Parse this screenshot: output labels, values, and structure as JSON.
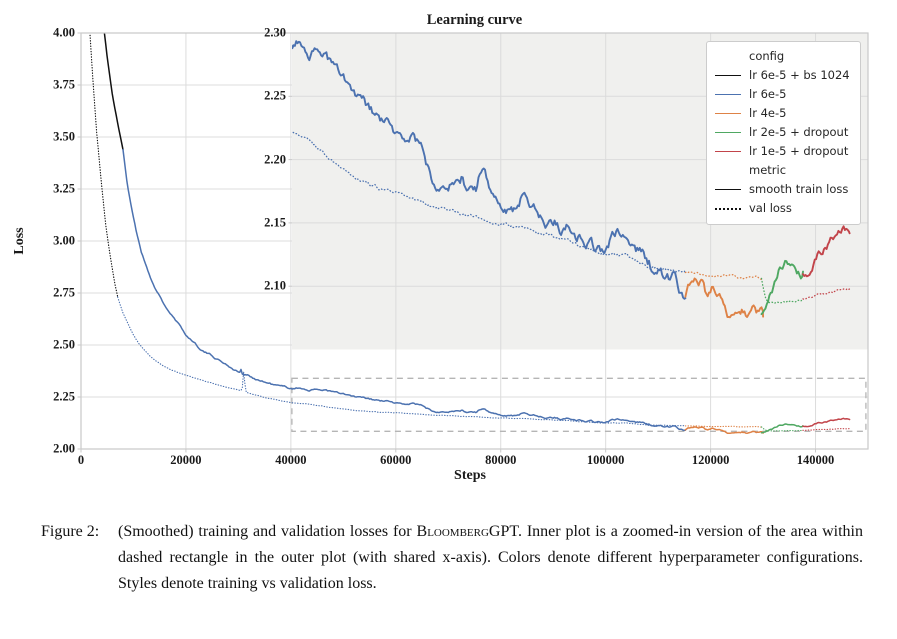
{
  "chart_data": {
    "type": "line",
    "title": "Learning curve",
    "xlabel": "Steps",
    "ylabel": "Loss",
    "grid": true,
    "colors": {
      "black": "#111111",
      "blue": "#4C72B0",
      "orange": "#DE8246",
      "green": "#4FA862",
      "red": "#C2444A",
      "grid": "#DCDCDC",
      "inset_bg": "#F0F0EE",
      "border": "#C9C9C9",
      "zoom_rect": "#B5B5B5"
    },
    "main_axes": {
      "xlim": [
        0,
        150000
      ],
      "ylim": [
        2.0,
        4.0
      ],
      "xticks": [
        "0",
        "20000",
        "40000",
        "60000",
        "80000",
        "100000",
        "120000",
        "140000"
      ],
      "yticks": [
        "2.00",
        "2.25",
        "2.50",
        "2.75",
        "3.00",
        "3.25",
        "3.50",
        "3.75",
        "4.00"
      ]
    },
    "inset_axes": {
      "xlim": [
        40200,
        150000
      ],
      "ylim": [
        2.05,
        2.3
      ],
      "yticks": [
        "2.10",
        "2.15",
        "2.20",
        "2.25",
        "2.30"
      ],
      "gridx": [
        60000,
        80000,
        100000,
        120000,
        140000
      ],
      "gridy": [
        2.1,
        2.15,
        2.2,
        2.25
      ]
    },
    "zoom_rect": {
      "x": [
        40200,
        149600
      ],
      "y": [
        2.085,
        2.34
      ]
    },
    "series": [
      {
        "id": "train_bs1024",
        "config": "lr 6e-5 + bs 1024",
        "metric": "smooth train loss",
        "color": "black",
        "style": "solid",
        "seed": 11,
        "noise": 0.001,
        "points": [
          [
            4200,
            4.06
          ],
          [
            5000,
            3.88
          ],
          [
            6000,
            3.7
          ],
          [
            7100,
            3.55
          ],
          [
            8000,
            3.44
          ]
        ]
      },
      {
        "id": "val_bs1024",
        "config": "lr 6e-5 + bs 1024",
        "metric": "val loss",
        "color": "black",
        "style": "dotted",
        "seed": 12,
        "noise": 0.001,
        "points": [
          [
            1500,
            4.08
          ],
          [
            2200,
            3.8
          ],
          [
            3000,
            3.52
          ],
          [
            3800,
            3.3
          ],
          [
            4700,
            3.08
          ],
          [
            5600,
            2.92
          ],
          [
            6400,
            2.8
          ],
          [
            7000,
            2.73
          ]
        ]
      },
      {
        "id": "train_6e5",
        "config": "lr 6e-5",
        "metric": "smooth train loss",
        "color": "blue",
        "style": "solid",
        "seed": 21,
        "noise": 0.0038,
        "points": [
          [
            8000,
            3.44
          ],
          [
            8800,
            3.28
          ],
          [
            9600,
            3.16
          ],
          [
            10500,
            3.05
          ],
          [
            11500,
            2.95
          ],
          [
            12500,
            2.875
          ],
          [
            13500,
            2.81
          ],
          [
            14500,
            2.755
          ],
          [
            15500,
            2.71
          ],
          [
            16500,
            2.67
          ],
          [
            17500,
            2.635
          ],
          [
            18500,
            2.6
          ],
          [
            19500,
            2.565
          ],
          [
            20500,
            2.535
          ],
          [
            21500,
            2.515
          ],
          [
            22500,
            2.49
          ],
          [
            23500,
            2.47
          ],
          [
            24500,
            2.455
          ],
          [
            25500,
            2.44
          ],
          [
            26500,
            2.425
          ],
          [
            27500,
            2.41
          ],
          [
            28500,
            2.395
          ],
          [
            29500,
            2.38
          ],
          [
            30300,
            2.368
          ],
          [
            30500,
            2.384
          ],
          [
            30800,
            2.36
          ],
          [
            32000,
            2.35
          ],
          [
            33500,
            2.335
          ],
          [
            35000,
            2.322
          ],
          [
            36500,
            2.31
          ],
          [
            38000,
            2.3
          ],
          [
            39500,
            2.293
          ],
          [
            41000,
            2.292
          ],
          [
            42200,
            2.293
          ],
          [
            43000,
            2.288
          ],
          [
            44500,
            2.284
          ],
          [
            46700,
            2.286
          ],
          [
            48300,
            2.272
          ],
          [
            50200,
            2.2605
          ],
          [
            51800,
            2.25
          ],
          [
            54300,
            2.2394
          ],
          [
            56200,
            2.2315
          ],
          [
            58500,
            2.2263
          ],
          [
            61000,
            2.2131
          ],
          [
            62000,
            2.2157
          ],
          [
            63500,
            2.221
          ],
          [
            65500,
            2.2026
          ],
          [
            66700,
            2.1868
          ],
          [
            68300,
            2.1855
          ],
          [
            69900,
            2.1888
          ],
          [
            71200,
            2.1828
          ],
          [
            72500,
            2.1868
          ],
          [
            73400,
            2.1776
          ],
          [
            75300,
            2.1762
          ],
          [
            76000,
            2.1868
          ],
          [
            77200,
            2.1828
          ],
          [
            78200,
            2.1697
          ],
          [
            79500,
            2.1631
          ],
          [
            80700,
            2.167
          ],
          [
            82300,
            2.1618
          ],
          [
            83900,
            2.171
          ],
          [
            84600,
            2.175
          ],
          [
            85500,
            2.171
          ],
          [
            86800,
            2.1657
          ],
          [
            87700,
            2.1578
          ],
          [
            88400,
            2.1499
          ],
          [
            90300,
            2.1525
          ],
          [
            91600,
            2.146
          ],
          [
            92800,
            2.1499
          ],
          [
            94400,
            2.1433
          ],
          [
            96000,
            2.1394
          ],
          [
            97600,
            2.1327
          ],
          [
            99200,
            2.1275
          ],
          [
            100800,
            2.1365
          ],
          [
            102700,
            2.1404
          ],
          [
            104600,
            2.1339
          ],
          [
            106500,
            2.1273
          ],
          [
            108400,
            2.1168
          ],
          [
            109300,
            2.1102
          ],
          [
            110300,
            2.1128
          ],
          [
            111200,
            2.1049
          ],
          [
            112200,
            2.1023
          ],
          [
            113100,
            2.1063
          ],
          [
            114100,
            2.0944
          ],
          [
            115200,
            2.0905
          ]
        ]
      },
      {
        "id": "val_6e5",
        "config": "lr 6e-5",
        "metric": "val loss",
        "color": "blue",
        "style": "dotted",
        "seed": 22,
        "noise": 0.0011,
        "points": [
          [
            7000,
            2.73
          ],
          [
            8000,
            2.655
          ],
          [
            9000,
            2.6
          ],
          [
            10000,
            2.55
          ],
          [
            11000,
            2.51
          ],
          [
            12000,
            2.478
          ],
          [
            13000,
            2.452
          ],
          [
            14000,
            2.43
          ],
          [
            15500,
            2.405
          ],
          [
            17000,
            2.386
          ],
          [
            18500,
            2.37
          ],
          [
            20000,
            2.356
          ],
          [
            22000,
            2.339
          ],
          [
            24000,
            2.324
          ],
          [
            26000,
            2.31
          ],
          [
            28000,
            2.296
          ],
          [
            30000,
            2.284
          ],
          [
            30700,
            2.279
          ],
          [
            31000,
            2.37
          ],
          [
            31400,
            2.272
          ],
          [
            33000,
            2.262
          ],
          [
            35000,
            2.249
          ],
          [
            37000,
            2.237
          ],
          [
            39000,
            2.227
          ],
          [
            40000,
            2.2224
          ],
          [
            43800,
            2.2131
          ],
          [
            47600,
            2.2013
          ],
          [
            51500,
            2.1894
          ],
          [
            55300,
            2.1802
          ],
          [
            59100,
            2.1737
          ],
          [
            62900,
            2.1684
          ],
          [
            66700,
            2.1644
          ],
          [
            70500,
            2.1605
          ],
          [
            74400,
            2.1553
          ],
          [
            78200,
            2.1513
          ],
          [
            82000,
            2.1474
          ],
          [
            85800,
            2.1434
          ],
          [
            89600,
            2.1395
          ],
          [
            93500,
            2.1342
          ],
          [
            97300,
            2.1289
          ],
          [
            101000,
            2.125
          ],
          [
            105000,
            2.121
          ],
          [
            109000,
            2.116
          ],
          [
            112000,
            2.113
          ],
          [
            115200,
            2.11
          ]
        ]
      },
      {
        "id": "train_4e5",
        "config": "lr 4e-5",
        "metric": "smooth train loss",
        "color": "orange",
        "style": "solid",
        "seed": 31,
        "noise": 0.0032,
        "points": [
          [
            115200,
            2.0905
          ],
          [
            116000,
            2.101
          ],
          [
            116800,
            2.108
          ],
          [
            117600,
            2.099
          ],
          [
            118400,
            2.104
          ],
          [
            119500,
            2.089
          ],
          [
            120300,
            2.096
          ],
          [
            121200,
            2.083
          ],
          [
            122300,
            2.089
          ],
          [
            123200,
            2.078
          ],
          [
            124000,
            2.0735
          ],
          [
            124600,
            2.0707
          ],
          [
            125600,
            2.0785
          ],
          [
            126500,
            2.0825
          ],
          [
            127500,
            2.077
          ],
          [
            128300,
            2.0815
          ],
          [
            129200,
            2.0765
          ],
          [
            130000,
            2.0759
          ]
        ]
      },
      {
        "id": "val_4e5",
        "config": "lr 4e-5",
        "metric": "val loss",
        "color": "orange",
        "style": "dotted",
        "seed": 32,
        "noise": 0.0008,
        "points": [
          [
            115200,
            2.111
          ],
          [
            117000,
            2.1105
          ],
          [
            119000,
            2.109
          ],
          [
            121000,
            2.108
          ],
          [
            123000,
            2.108
          ],
          [
            125000,
            2.107
          ],
          [
            127000,
            2.106
          ],
          [
            128500,
            2.107
          ],
          [
            130000,
            2.1055
          ]
        ]
      },
      {
        "id": "train_2e5",
        "config": "lr 2e-5 + dropout",
        "metric": "smooth train loss",
        "color": "green",
        "style": "solid",
        "seed": 41,
        "noise": 0.0028,
        "points": [
          [
            129700,
            2.076
          ],
          [
            130600,
            2.081
          ],
          [
            131300,
            2.089
          ],
          [
            131900,
            2.097
          ],
          [
            132500,
            2.1036
          ],
          [
            133200,
            2.1128
          ],
          [
            133800,
            2.1154
          ],
          [
            134400,
            2.1194
          ],
          [
            134800,
            2.118
          ],
          [
            135100,
            2.1181
          ],
          [
            135700,
            2.1207
          ],
          [
            136300,
            2.1168
          ],
          [
            137000,
            2.1128
          ],
          [
            137600,
            2.1115
          ]
        ]
      },
      {
        "id": "val_2e5",
        "config": "lr 2e-5 + dropout",
        "metric": "val loss",
        "color": "green",
        "style": "dotted",
        "seed": 42,
        "noise": 0.0008,
        "points": [
          [
            129700,
            2.106
          ],
          [
            130100,
            2.097
          ],
          [
            130500,
            2.0895
          ],
          [
            131000,
            2.0875
          ],
          [
            132000,
            2.0865
          ],
          [
            133000,
            2.0867
          ],
          [
            134000,
            2.0875
          ],
          [
            135000,
            2.0885
          ],
          [
            136000,
            2.0895
          ],
          [
            137600,
            2.0904
          ]
        ]
      },
      {
        "id": "train_1e5",
        "config": "lr 1e-5 + dropout",
        "metric": "smooth train loss",
        "color": "red",
        "style": "solid",
        "seed": 51,
        "noise": 0.0028,
        "points": [
          [
            137600,
            2.1115
          ],
          [
            138400,
            2.1135
          ],
          [
            138900,
            2.1154
          ],
          [
            139900,
            2.1207
          ],
          [
            140800,
            2.126
          ],
          [
            141800,
            2.1312
          ],
          [
            142700,
            2.1352
          ],
          [
            143700,
            2.1391
          ],
          [
            144600,
            2.1431
          ],
          [
            145300,
            2.1448
          ],
          [
            145900,
            2.1442
          ],
          [
            146500,
            2.1418
          ]
        ]
      },
      {
        "id": "val_1e5",
        "config": "lr 1e-5 + dropout",
        "metric": "val loss",
        "color": "red",
        "style": "dotted",
        "seed": 52,
        "noise": 0.0007,
        "points": [
          [
            137600,
            2.0904
          ],
          [
            138500,
            2.0912
          ],
          [
            139500,
            2.0922
          ],
          [
            140500,
            2.0932
          ],
          [
            141500,
            2.0942
          ],
          [
            142500,
            2.095
          ],
          [
            143500,
            2.0958
          ],
          [
            144500,
            2.0965
          ],
          [
            145500,
            2.0972
          ],
          [
            146500,
            2.0978
          ]
        ]
      }
    ],
    "legend": {
      "config_header": "config",
      "config_items": [
        {
          "label": "lr 6e-5 + bs 1024",
          "color": "black"
        },
        {
          "label": "lr 6e-5",
          "color": "blue"
        },
        {
          "label": "lr 4e-5",
          "color": "orange"
        },
        {
          "label": "lr 2e-5 + dropout",
          "color": "green"
        },
        {
          "label": "lr 1e-5 + dropout",
          "color": "red"
        }
      ],
      "metric_header": "metric",
      "metric_items": [
        {
          "label": "smooth train loss",
          "style": "solid"
        },
        {
          "label": "val loss",
          "style": "dotted"
        }
      ]
    }
  },
  "caption": {
    "label": "Figure 2:",
    "segments": [
      {
        "t": "(Smoothed) training and validation losses for ",
        "sc": false
      },
      {
        "t": "Bloomberg",
        "sc": true
      },
      {
        "t": "GPT. Inner plot is a zoomed-in version of the area within dashed rectangle in the outer plot (with shared x-axis). Colors denote different hyperparameter configurations. Styles denote training vs validation loss.",
        "sc": false
      }
    ]
  }
}
